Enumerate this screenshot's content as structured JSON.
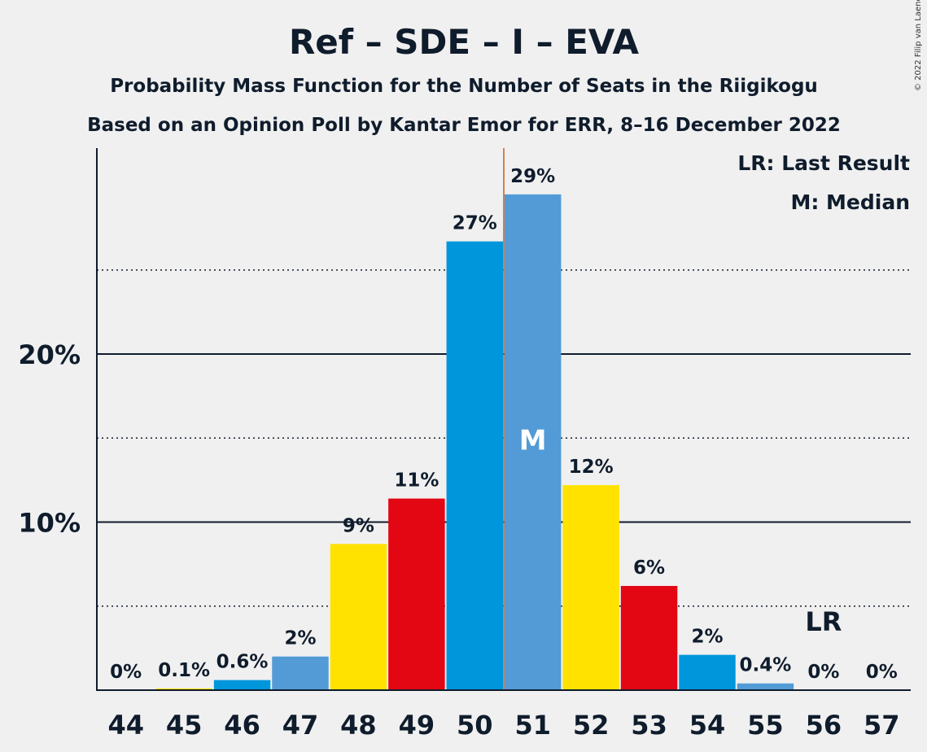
{
  "title": "Ref – SDE – I – EVA",
  "subtitle1": "Probability Mass Function for the Number of Seats in the Riigikogu",
  "subtitle2": "Based on an Opinion Poll by Kantar Emor for ERR, 8–16 December 2022",
  "legend": {
    "lr": "LR: Last Result",
    "m": "M: Median"
  },
  "copyright": "© 2022 Filip van Laenen",
  "chart_data": {
    "type": "bar",
    "categories": [
      "44",
      "45",
      "46",
      "47",
      "48",
      "49",
      "50",
      "51",
      "52",
      "53",
      "54",
      "55",
      "56",
      "57"
    ],
    "values": [
      0,
      0.1,
      0.6,
      2,
      8.7,
      11.4,
      26.7,
      29.5,
      12.2,
      6.2,
      2.1,
      0.4,
      0,
      0
    ],
    "labels": [
      "0%",
      "0.1%",
      "0.6%",
      "2%",
      "9%",
      "11%",
      "27%",
      "29%",
      "12%",
      "6%",
      "2%",
      "0.4%",
      "0%",
      "0%"
    ],
    "colors": [
      "#e30613",
      "#ffe200",
      "#0096dc",
      "#529bd7",
      "#ffe200",
      "#e30613",
      "#0096dc",
      "#529bd7",
      "#ffe200",
      "#e30613",
      "#0096dc",
      "#529bd7",
      "#ffe200",
      "#e30613"
    ],
    "ylim": [
      0,
      32
    ],
    "yticks": [
      {
        "value": 10,
        "label": "10%"
      },
      {
        "value": 20,
        "label": "20%"
      }
    ],
    "minor_gridlines": [
      5,
      15,
      25
    ],
    "median": {
      "category": "51",
      "label": "M"
    },
    "last_result": {
      "category": "56",
      "label": "LR"
    },
    "median_line_color": "#c85a1e"
  }
}
